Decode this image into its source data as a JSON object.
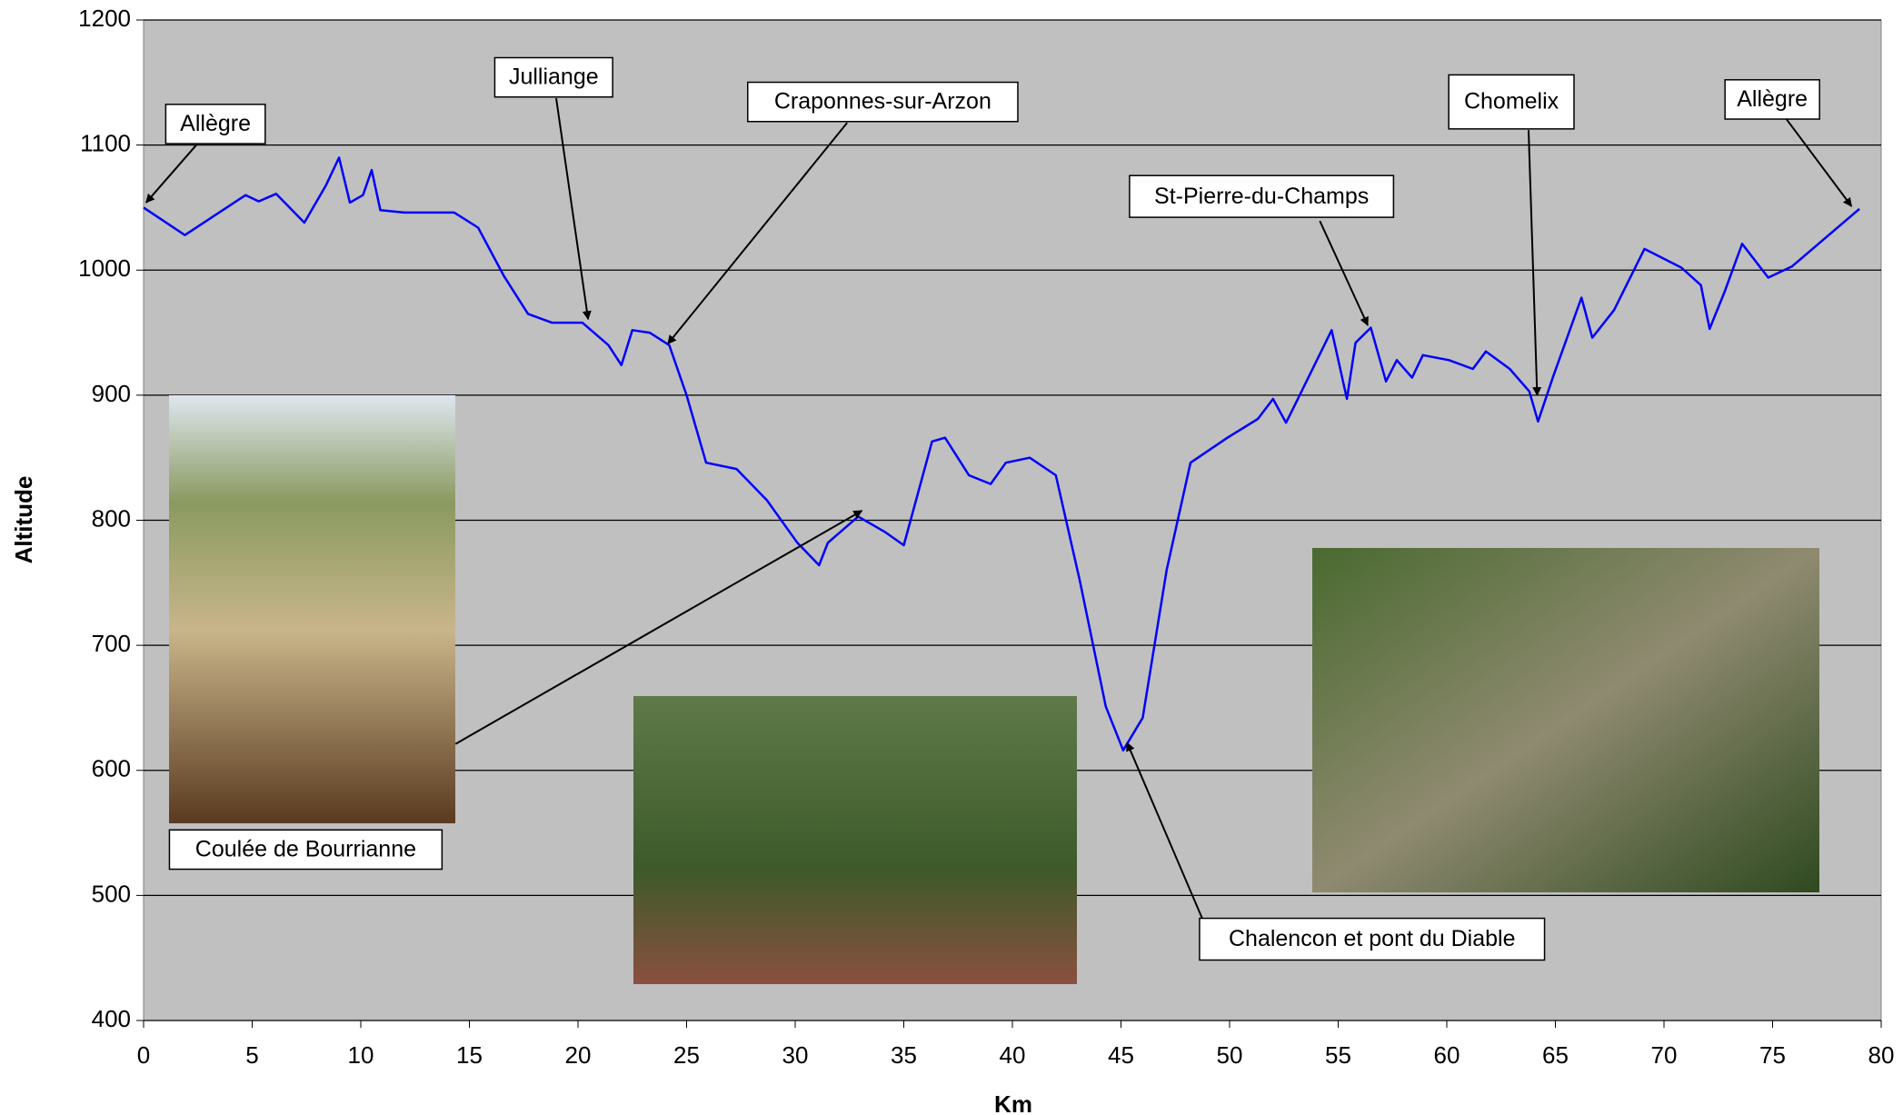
{
  "chart_data": {
    "type": "line",
    "x_label": "Km",
    "y_label": "Altitude",
    "xlim": [
      0,
      80
    ],
    "xticks": [
      0,
      5,
      10,
      15,
      20,
      25,
      30,
      35,
      40,
      45,
      50,
      55,
      60,
      65,
      70,
      75,
      80
    ],
    "ylim": [
      400,
      1200
    ],
    "yticks": [
      400,
      500,
      600,
      700,
      800,
      900,
      1000,
      1100,
      1200
    ],
    "grid": true,
    "series": [
      {
        "color": "#0000ff",
        "x": [
          0,
          1.9,
          4.7,
          5.3,
          6.1,
          7.4,
          8.4,
          9.0,
          9.5,
          10.1,
          10.5,
          10.9,
          12,
          14.3,
          15.4,
          16.6,
          17.7,
          18.8,
          20.2,
          21.4,
          22,
          22.5,
          23.3,
          24.2,
          25,
          25.9,
          27.3,
          28.7,
          30.1,
          31.1,
          31.5,
          32.9,
          34.1,
          35,
          36.3,
          36.9,
          38,
          39,
          39.7,
          40.8,
          42,
          43.1,
          44.3,
          45.1,
          46,
          47.1,
          48.2,
          49.9,
          51.3,
          52,
          52.6,
          53,
          54.7,
          55.4,
          55.8,
          56.5,
          57.2,
          57.7,
          58.4,
          58.9,
          60.1,
          61.2,
          61.8,
          62.9,
          63.8,
          64.2,
          64.9,
          66.2,
          66.7,
          67.7,
          69.1,
          70.8,
          71.7,
          72.1,
          72.8,
          73.6,
          74.8,
          75.9,
          79
        ],
        "values": [
          1050,
          1028,
          1060,
          1055,
          1061,
          1038,
          1068,
          1090,
          1054,
          1060,
          1080,
          1048,
          1046,
          1046,
          1034,
          995,
          965,
          958,
          958,
          940,
          924,
          952,
          950,
          940,
          900,
          846,
          841,
          816,
          782,
          764,
          782,
          803,
          791,
          780,
          863,
          866,
          836,
          829,
          846,
          850,
          836,
          752,
          651,
          616,
          642,
          760,
          846,
          866,
          881,
          897,
          878,
          892,
          952,
          897,
          942,
          954,
          911,
          928,
          914,
          932,
          928,
          921,
          935,
          921,
          903,
          879,
          915,
          978,
          946,
          968,
          1017,
          1002,
          988,
          953,
          983,
          1021,
          994,
          1003,
          1049
        ]
      }
    ],
    "annotations": [
      "Allègre",
      "Julliange",
      "Craponnes-sur-Arzon",
      "St-Pierre-du-Champs",
      "Chomelix",
      "Allègre",
      "Coulée de Bourrianne",
      "Chalencon et pont du Diable"
    ]
  }
}
